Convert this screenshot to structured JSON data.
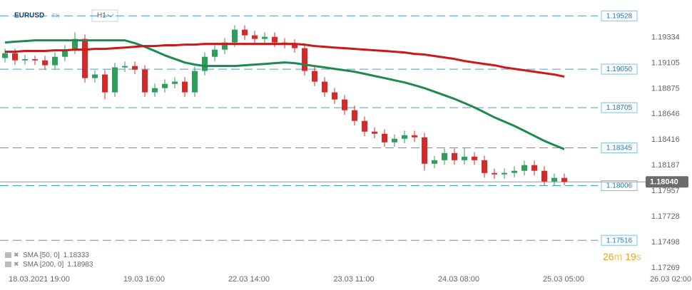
{
  "header": {
    "symbol": "EURUSD",
    "market": "FX",
    "interval": "H1"
  },
  "chart_data": {
    "type": "candlestick",
    "ylim": [
      1.1723,
      1.1967
    ],
    "yticks": [
      1.19334,
      1.19105,
      1.18875,
      1.18646,
      1.18416,
      1.18187,
      1.17957,
      1.17728,
      1.17498,
      1.17269
    ],
    "x_tick_labels": [
      "18.03.2021 19:00",
      "19.03 16:00",
      "22.03 14:00",
      "23.03 11:00",
      "24.03 08:00",
      "25.03 05:00",
      "26.03 02:00"
    ],
    "up_color": "#2e9e5b",
    "down_color": "#d42a2a",
    "candles": {
      "open": [
        1.1915,
        1.19193,
        1.19129,
        1.1914,
        1.19129,
        1.19085,
        1.19161,
        1.19225,
        1.19321,
        1.1897,
        1.19002,
        1.18842,
        1.19066,
        1.19078,
        1.19046,
        1.18842,
        1.1888,
        1.18918,
        1.18938,
        1.18842,
        1.19034,
        1.19161,
        1.19225,
        1.19289,
        1.19404,
        1.19353,
        1.19321,
        1.1934,
        1.19289,
        1.19277,
        1.19238,
        1.19034,
        1.18938,
        1.18842,
        1.18778,
        1.18682,
        1.18586,
        1.1849,
        1.18471,
        1.18394,
        1.18426,
        1.18458,
        1.18439,
        1.18202,
        1.18234,
        1.18298,
        1.18234,
        1.18266,
        1.18234,
        1.18119,
        1.18107,
        1.1812,
        1.18139,
        1.1819,
        1.18139,
        1.18043,
        1.18075
      ],
      "high": [
        1.19233,
        1.19233,
        1.1918,
        1.1917,
        1.19169,
        1.19201,
        1.19265,
        1.1938,
        1.19361,
        1.19042,
        1.19042,
        1.19106,
        1.19118,
        1.19118,
        1.19086,
        1.1892,
        1.18958,
        1.18978,
        1.18978,
        1.19074,
        1.19201,
        1.19265,
        1.19329,
        1.19444,
        1.19444,
        1.19393,
        1.1938,
        1.1938,
        1.19329,
        1.19317,
        1.19278,
        1.19074,
        1.18978,
        1.18882,
        1.18818,
        1.18722,
        1.18626,
        1.1853,
        1.18511,
        1.18466,
        1.18498,
        1.18498,
        1.18479,
        1.18274,
        1.18338,
        1.18338,
        1.1834,
        1.18306,
        1.18274,
        1.18159,
        1.1816,
        1.18179,
        1.1823,
        1.1823,
        1.18179,
        1.18115,
        1.18115
      ],
      "low": [
        1.1911,
        1.19089,
        1.1909,
        1.19089,
        1.19045,
        1.19045,
        1.19121,
        1.19185,
        1.1893,
        1.1893,
        1.1878,
        1.18802,
        1.19026,
        1.19006,
        1.18802,
        1.18802,
        1.1884,
        1.18878,
        1.18802,
        1.18802,
        1.18994,
        1.19121,
        1.19185,
        1.19249,
        1.19313,
        1.19281,
        1.19281,
        1.19249,
        1.19237,
        1.19198,
        1.18994,
        1.18898,
        1.18802,
        1.18738,
        1.18642,
        1.18546,
        1.1845,
        1.18431,
        1.18354,
        1.18354,
        1.18386,
        1.18399,
        1.1814,
        1.18162,
        1.18194,
        1.18194,
        1.18194,
        1.18194,
        1.18079,
        1.18067,
        1.18067,
        1.1808,
        1.18099,
        1.18099,
        1.18003,
        1.18003,
        1.1801
      ],
      "close": [
        1.19193,
        1.19129,
        1.1914,
        1.19129,
        1.19085,
        1.19161,
        1.19225,
        1.19321,
        1.1897,
        1.19002,
        1.18842,
        1.19066,
        1.19078,
        1.19046,
        1.18842,
        1.1888,
        1.18918,
        1.18938,
        1.18842,
        1.19034,
        1.19161,
        1.19225,
        1.19289,
        1.19404,
        1.19353,
        1.19321,
        1.1934,
        1.19289,
        1.19277,
        1.19238,
        1.19034,
        1.18938,
        1.18842,
        1.18778,
        1.18682,
        1.18586,
        1.1849,
        1.18471,
        1.18394,
        1.18426,
        1.18458,
        1.18439,
        1.18202,
        1.18234,
        1.18298,
        1.18234,
        1.18266,
        1.18234,
        1.18119,
        1.18107,
        1.1812,
        1.18139,
        1.1819,
        1.18139,
        1.18043,
        1.18075,
        1.1804
      ]
    },
    "indicators": [
      {
        "name": "SMA [50, 0]",
        "color": "#1f8a4f",
        "last": 1.18333,
        "values": [
          1.19289,
          1.19296,
          1.19302,
          1.19308,
          1.19308,
          1.19308,
          1.19308,
          1.19308,
          1.19308,
          1.19308,
          1.19308,
          1.19308,
          1.19308,
          1.19283,
          1.19251,
          1.19213,
          1.19174,
          1.19142,
          1.1911,
          1.19091,
          1.19078,
          1.19078,
          1.19078,
          1.19078,
          1.19085,
          1.19091,
          1.19097,
          1.19104,
          1.1911,
          1.19104,
          1.19091,
          1.19078,
          1.19066,
          1.19053,
          1.1904,
          1.19027,
          1.19008,
          1.18989,
          1.1897,
          1.1895,
          1.18931,
          1.18906,
          1.1888,
          1.18848,
          1.18816,
          1.18784,
          1.18746,
          1.18707,
          1.18663,
          1.18618,
          1.1858,
          1.18541,
          1.18497,
          1.18452,
          1.18407,
          1.18369,
          1.18333
        ]
      },
      {
        "name": "SMA [200, 0]",
        "color": "#cc1818",
        "last": 1.18983,
        "values": [
          1.19206,
          1.19206,
          1.19213,
          1.19213,
          1.19213,
          1.19219,
          1.19219,
          1.19225,
          1.19225,
          1.19232,
          1.19232,
          1.19238,
          1.19244,
          1.19251,
          1.19257,
          1.19257,
          1.19264,
          1.19264,
          1.1927,
          1.1927,
          1.19276,
          1.19276,
          1.19276,
          1.19276,
          1.19276,
          1.19276,
          1.19276,
          1.19276,
          1.19276,
          1.19276,
          1.1927,
          1.19257,
          1.19251,
          1.19244,
          1.19238,
          1.19232,
          1.19225,
          1.19219,
          1.19213,
          1.19206,
          1.192,
          1.19187,
          1.19181,
          1.19168,
          1.19155,
          1.19142,
          1.19123,
          1.1911,
          1.19097,
          1.19085,
          1.19066,
          1.19053,
          1.1904,
          1.19027,
          1.19014,
          1.19002,
          1.18983
        ]
      }
    ],
    "levels": [
      1.19528,
      {
        "value": 1.1905,
        "label": "1.19050"
      },
      1.18705,
      1.18345,
      1.18006,
      1.17516
    ],
    "current_price": {
      "value": 1.1804,
      "label": "1.18040"
    },
    "timer": {
      "minutes": 26,
      "minutes_unit": "m",
      "seconds": 19,
      "seconds_unit": "s"
    }
  }
}
